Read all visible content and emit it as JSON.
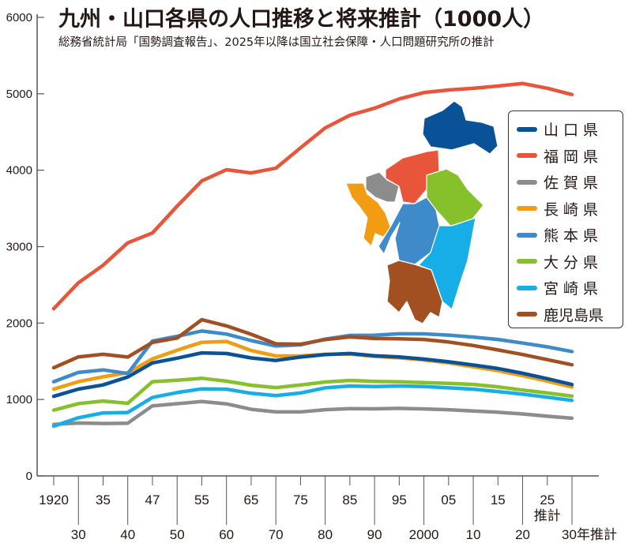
{
  "chart_data": {
    "type": "line",
    "title": "九州・山口各県の人口推移と将来推計（1000人）",
    "subtitle": "総務省統計局「国勢調査報告」、2025年以降は国立社会保障・人口問題研究所の推計",
    "x": [
      1920,
      1930,
      1935,
      1940,
      1947,
      1950,
      1955,
      1960,
      1965,
      1970,
      1975,
      1980,
      1985,
      1990,
      1995,
      2000,
      2005,
      2010,
      2015,
      2020,
      2025,
      2030
    ],
    "x_tick_labels_top": [
      "1920",
      "35",
      "47",
      "55",
      "65",
      "75",
      "85",
      "95",
      "05",
      "15",
      "25"
    ],
    "x_tick_labels_top_index": [
      0,
      2,
      4,
      6,
      8,
      10,
      12,
      14,
      16,
      18,
      20
    ],
    "x_tick_labels_bottom": [
      "30",
      "40",
      "50",
      "60",
      "70",
      "80",
      "90",
      "2000",
      "10",
      "20",
      "30年推計"
    ],
    "x_tick_labels_bottom_index": [
      1,
      3,
      5,
      7,
      9,
      11,
      13,
      15,
      17,
      19,
      21
    ],
    "projection_label": "推計",
    "ylim": [
      0,
      6000
    ],
    "y_ticks": [
      0,
      1000,
      2000,
      3000,
      4000,
      5000,
      6000
    ],
    "grid": false,
    "legend_position": "right",
    "series": [
      {
        "name": "山口県",
        "color": "#0a5297",
        "values": [
          1041,
          1136,
          1191,
          1294,
          1479,
          1541,
          1610,
          1602,
          1544,
          1511,
          1555,
          1587,
          1602,
          1573,
          1556,
          1528,
          1493,
          1451,
          1405,
          1342,
          1272,
          1196
        ]
      },
      {
        "name": "福岡県",
        "color": "#e8553a",
        "values": [
          2188,
          2527,
          2756,
          3050,
          3179,
          3530,
          3860,
          4007,
          3965,
          4027,
          4293,
          4553,
          4719,
          4811,
          4933,
          5016,
          5050,
          5072,
          5102,
          5135,
          5073,
          4990
        ]
      },
      {
        "name": "佐賀県",
        "color": "#8c8c8c",
        "values": [
          674,
          692,
          686,
          690,
          917,
          945,
          974,
          943,
          872,
          838,
          838,
          866,
          880,
          878,
          884,
          877,
          866,
          850,
          833,
          811,
          781,
          755
        ]
      },
      {
        "name": "長崎県",
        "color": "#f29c12",
        "values": [
          1136,
          1233,
          1297,
          1350,
          1532,
          1645,
          1748,
          1760,
          1641,
          1570,
          1571,
          1591,
          1594,
          1563,
          1545,
          1517,
          1479,
          1427,
          1377,
          1312,
          1240,
          1163
        ]
      },
      {
        "name": "熊本県",
        "color": "#3f8ac9",
        "values": [
          1233,
          1354,
          1387,
          1340,
          1765,
          1827,
          1896,
          1856,
          1771,
          1700,
          1715,
          1790,
          1838,
          1840,
          1860,
          1859,
          1842,
          1817,
          1786,
          1738,
          1688,
          1628
        ]
      },
      {
        "name": "大分県",
        "color": "#86c12b",
        "values": [
          860,
          946,
          980,
          950,
          1233,
          1253,
          1277,
          1240,
          1187,
          1156,
          1190,
          1229,
          1250,
          1237,
          1231,
          1221,
          1210,
          1197,
          1166,
          1124,
          1085,
          1044
        ]
      },
      {
        "name": "宮崎県",
        "color": "#17aee8",
        "values": [
          651,
          761,
          824,
          830,
          1026,
          1091,
          1139,
          1135,
          1081,
          1051,
          1085,
          1152,
          1176,
          1169,
          1176,
          1170,
          1153,
          1135,
          1104,
          1070,
          1030,
          988
        ]
      },
      {
        "name": "鹿児島県",
        "color": "#a24f22",
        "values": [
          1416,
          1557,
          1591,
          1555,
          1747,
          1804,
          2044,
          1963,
          1854,
          1729,
          1724,
          1785,
          1819,
          1798,
          1794,
          1786,
          1753,
          1706,
          1648,
          1588,
          1521,
          1454
        ]
      }
    ],
    "map_regions": [
      "山口県",
      "福岡県",
      "佐賀県",
      "長崎県",
      "熊本県",
      "大分県",
      "宮崎県",
      "鹿児島県"
    ]
  }
}
